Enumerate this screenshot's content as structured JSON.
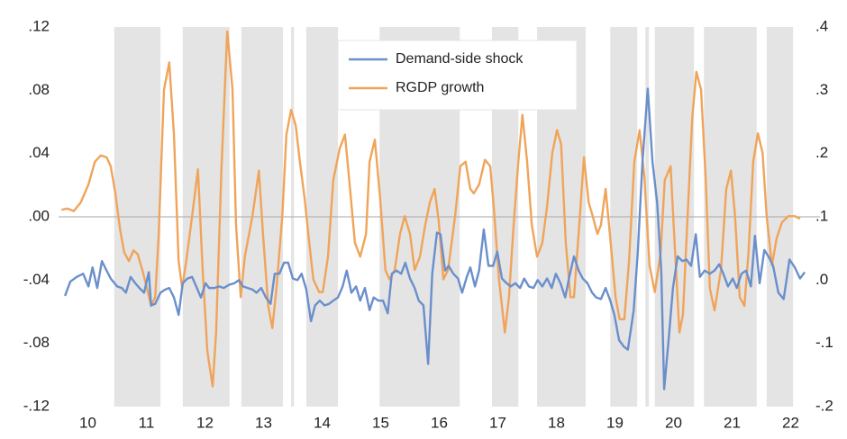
{
  "chart_data": {
    "type": "line",
    "xlim": [
      10,
      23
    ],
    "xticks": [
      {
        "value": 10.5,
        "label": "10"
      },
      {
        "value": 11.5,
        "label": "11"
      },
      {
        "value": 12.5,
        "label": "12"
      },
      {
        "value": 13.5,
        "label": "13"
      },
      {
        "value": 14.5,
        "label": "14"
      },
      {
        "value": 15.5,
        "label": "15"
      },
      {
        "value": 16.5,
        "label": "16"
      },
      {
        "value": 17.5,
        "label": "17"
      },
      {
        "value": 18.5,
        "label": "18"
      },
      {
        "value": 19.5,
        "label": "19"
      },
      {
        "value": 20.5,
        "label": "20"
      },
      {
        "value": 21.5,
        "label": "21"
      },
      {
        "value": 22.5,
        "label": "22"
      }
    ],
    "ylim": [
      -0.12,
      0.12
    ],
    "yticks": [
      {
        "value": -0.12,
        "label": "-.12"
      },
      {
        "value": -0.08,
        "label": "-.08"
      },
      {
        "value": -0.04,
        "label": "-.04"
      },
      {
        "value": 0,
        "label": ".00"
      },
      {
        "value": 0.04,
        "label": ".04"
      },
      {
        "value": 0.08,
        "label": ".08"
      },
      {
        "value": 0.12,
        "label": ".12"
      }
    ],
    "y2lim": [
      -0.2,
      0.4
    ],
    "y2ticks": [
      {
        "value": -0.2,
        "label": "-.2"
      },
      {
        "value": -0.1,
        "label": "-.1"
      },
      {
        "value": 0,
        "label": ".0"
      },
      {
        "value": 0.1,
        "label": ".1"
      },
      {
        "value": 0.2,
        "label": ".2"
      },
      {
        "value": 0.3,
        "label": ".3"
      },
      {
        "value": 0.4,
        "label": ".4"
      }
    ],
    "legend": "top-center",
    "shade_color": "#e4e4e4",
    "shaded_periods": [
      [
        10.95,
        11.74
      ],
      [
        12.12,
        12.92
      ],
      [
        13.12,
        13.83
      ],
      [
        13.97,
        14.02
      ],
      [
        14.23,
        14.77
      ],
      [
        15.48,
        16.85
      ],
      [
        17.4,
        17.85
      ],
      [
        18.17,
        19.0
      ],
      [
        19.42,
        19.88
      ],
      [
        20.02,
        20.08
      ],
      [
        20.18,
        20.85
      ],
      [
        21.02,
        21.92
      ],
      [
        22.09,
        22.54
      ]
    ],
    "series": [
      {
        "name": "Demand-side shock",
        "color": "#6a8fcb",
        "axis": "y",
        "x": [
          10.11,
          10.2,
          10.31,
          10.42,
          10.51,
          10.58,
          10.66,
          10.74,
          10.82,
          10.89,
          11,
          11.08,
          11.15,
          11.23,
          11.31,
          11.38,
          11.46,
          11.54,
          11.58,
          11.65,
          11.74,
          11.82,
          11.89,
          11.97,
          12.05,
          12.12,
          12.2,
          12.28,
          12.35,
          12.43,
          12.51,
          12.57,
          12.66,
          12.74,
          12.82,
          12.91,
          13,
          13.08,
          13.15,
          13.23,
          13.31,
          13.38,
          13.46,
          13.54,
          13.62,
          13.69,
          13.77,
          13.85,
          13.92,
          14,
          14.08,
          14.15,
          14.23,
          14.31,
          14.38,
          14.46,
          14.54,
          14.62,
          14.69,
          14.77,
          14.85,
          14.92,
          15,
          15.08,
          15.15,
          15.23,
          15.31,
          15.38,
          15.46,
          15.54,
          15.62,
          15.69,
          15.77,
          15.85,
          15.92,
          16,
          16.08,
          16.15,
          16.23,
          16.31,
          16.38,
          16.46,
          16.52,
          16.6,
          16.66,
          16.74,
          16.82,
          16.89,
          16.97,
          17.03,
          17.11,
          17.18,
          17.26,
          17.34,
          17.42,
          17.49,
          17.57,
          17.65,
          17.72,
          17.8,
          17.88,
          17.95,
          18.03,
          18.11,
          18.18,
          18.26,
          18.34,
          18.42,
          18.49,
          18.57,
          18.65,
          18.72,
          18.8,
          18.88,
          18.95,
          19.03,
          19.11,
          19.18,
          19.26,
          19.34,
          19.42,
          19.49,
          19.57,
          19.65,
          19.72,
          19.82,
          19.89,
          19.97,
          20.06,
          20.14,
          20.22,
          20.29,
          20.34,
          20.42,
          20.49,
          20.57,
          20.65,
          20.72,
          20.8,
          20.88,
          20.95,
          21.03,
          21.12,
          21.2,
          21.28,
          21.35,
          21.43,
          21.51,
          21.58,
          21.66,
          21.74,
          21.82,
          21.89,
          21.97,
          22.05,
          22.12,
          22.2,
          22.29,
          22.38,
          22.48,
          22.57,
          22.66,
          22.74
        ],
        "values": [
          -0.05,
          -0.041,
          -0.038,
          -0.036,
          -0.044,
          -0.032,
          -0.045,
          -0.028,
          -0.034,
          -0.039,
          -0.044,
          -0.045,
          -0.048,
          -0.038,
          -0.042,
          -0.045,
          -0.048,
          -0.035,
          -0.056,
          -0.055,
          -0.048,
          -0.046,
          -0.045,
          -0.051,
          -0.062,
          -0.042,
          -0.039,
          -0.038,
          -0.044,
          -0.051,
          -0.042,
          -0.045,
          -0.045,
          -0.044,
          -0.045,
          -0.043,
          -0.042,
          -0.04,
          -0.044,
          -0.045,
          -0.046,
          -0.048,
          -0.045,
          -0.051,
          -0.055,
          -0.036,
          -0.036,
          -0.029,
          -0.029,
          -0.039,
          -0.04,
          -0.036,
          -0.046,
          -0.066,
          -0.056,
          -0.053,
          -0.056,
          -0.055,
          -0.053,
          -0.051,
          -0.044,
          -0.034,
          -0.048,
          -0.044,
          -0.053,
          -0.045,
          -0.059,
          -0.051,
          -0.053,
          -0.053,
          -0.061,
          -0.036,
          -0.034,
          -0.036,
          -0.029,
          -0.039,
          -0.045,
          -0.053,
          -0.056,
          -0.093,
          -0.036,
          -0.01,
          -0.011,
          -0.034,
          -0.031,
          -0.036,
          -0.039,
          -0.048,
          -0.038,
          -0.032,
          -0.044,
          -0.034,
          -0.008,
          -0.031,
          -0.031,
          -0.022,
          -0.039,
          -0.042,
          -0.044,
          -0.042,
          -0.045,
          -0.039,
          -0.044,
          -0.045,
          -0.04,
          -0.044,
          -0.039,
          -0.045,
          -0.036,
          -0.042,
          -0.051,
          -0.038,
          -0.025,
          -0.034,
          -0.039,
          -0.042,
          -0.048,
          -0.051,
          -0.052,
          -0.045,
          -0.053,
          -0.062,
          -0.078,
          -0.082,
          -0.084,
          -0.059,
          -0.022,
          0.035,
          0.081,
          0.035,
          0.009,
          -0.034,
          -0.109,
          -0.076,
          -0.045,
          -0.025,
          -0.028,
          -0.027,
          -0.031,
          -0.011,
          -0.038,
          -0.034,
          -0.036,
          -0.034,
          -0.03,
          -0.036,
          -0.044,
          -0.039,
          -0.045,
          -0.036,
          -0.034,
          -0.044,
          -0.012,
          -0.042,
          -0.021,
          -0.025,
          -0.031,
          -0.048,
          -0.052,
          -0.027,
          -0.032,
          -0.039,
          -0.035
        ]
      },
      {
        "name": "RGDP growth",
        "color": "#f0a45a",
        "axis": "y2",
        "x": [
          10.05,
          10.15,
          10.26,
          10.38,
          10.51,
          10.62,
          10.72,
          10.82,
          10.89,
          10.97,
          11.05,
          11.12,
          11.2,
          11.28,
          11.35,
          11.43,
          11.51,
          11.58,
          11.65,
          11.71,
          11.8,
          11.89,
          11.97,
          12.05,
          12.11,
          12.18,
          12.28,
          12.38,
          12.46,
          12.54,
          12.63,
          12.69,
          12.78,
          12.88,
          12.97,
          13.03,
          13.11,
          13.18,
          13.31,
          13.42,
          13.49,
          13.58,
          13.65,
          13.72,
          13.82,
          13.89,
          13.97,
          14.05,
          14.12,
          14.2,
          14.28,
          14.35,
          14.45,
          14.51,
          14.6,
          14.69,
          14.8,
          14.89,
          14.97,
          15.06,
          15.15,
          15.25,
          15.31,
          15.4,
          15.49,
          15.58,
          15.65,
          15.74,
          15.83,
          15.91,
          16,
          16.08,
          16.17,
          16.26,
          16.34,
          16.42,
          16.49,
          16.57,
          16.65,
          16.77,
          16.86,
          16.95,
          17.03,
          17.09,
          17.18,
          17.28,
          17.37,
          17.43,
          17.52,
          17.62,
          17.69,
          17.77,
          17.85,
          17.92,
          18,
          18.08,
          18.17,
          18.26,
          18.34,
          18.43,
          18.51,
          18.58,
          18.66,
          18.74,
          18.8,
          18.89,
          18.97,
          19.05,
          19.12,
          19.2,
          19.26,
          19.34,
          19.42,
          19.51,
          19.58,
          19.66,
          19.74,
          19.83,
          19.92,
          20,
          20.09,
          20.18,
          20.28,
          20.35,
          20.45,
          20.51,
          20.6,
          20.66,
          20.74,
          20.82,
          20.89,
          20.97,
          21.05,
          21.12,
          21.2,
          21.31,
          21.4,
          21.48,
          21.55,
          21.63,
          21.71,
          21.78,
          21.86,
          21.94,
          22.02,
          22.09,
          22.18,
          22.26,
          22.35,
          22.46,
          22.57,
          22.66
        ],
        "values": [
          0.111,
          0.113,
          0.109,
          0.123,
          0.151,
          0.187,
          0.197,
          0.194,
          0.18,
          0.137,
          0.08,
          0.044,
          0.03,
          0.047,
          0.041,
          0.016,
          -0.013,
          -0.041,
          -0.027,
          0.073,
          0.301,
          0.344,
          0.23,
          0.03,
          -0.013,
          0.03,
          0.101,
          0.175,
          0.016,
          -0.112,
          -0.168,
          -0.083,
          0.173,
          0.393,
          0.301,
          0.087,
          -0.027,
          0.037,
          0.101,
          0.173,
          0.073,
          -0.041,
          -0.076,
          -0.013,
          0.101,
          0.23,
          0.269,
          0.244,
          0.187,
          0.13,
          0.059,
          0.001,
          -0.019,
          -0.019,
          0.037,
          0.158,
          0.208,
          0.23,
          0.151,
          0.059,
          0.037,
          0.073,
          0.187,
          0.222,
          0.13,
          0.016,
          0.001,
          0.016,
          0.073,
          0.101,
          0.073,
          0.016,
          0.037,
          0.087,
          0.123,
          0.144,
          0.094,
          0.001,
          0.016,
          0.101,
          0.18,
          0.187,
          0.144,
          0.137,
          0.151,
          0.19,
          0.18,
          0.116,
          0.001,
          -0.083,
          -0.027,
          0.087,
          0.187,
          0.261,
          0.187,
          0.087,
          0.037,
          0.059,
          0.116,
          0.201,
          0.237,
          0.215,
          0.059,
          -0.027,
          -0.027,
          0.087,
          0.194,
          0.123,
          0.101,
          0.073,
          0.087,
          0.144,
          0.066,
          -0.027,
          -0.062,
          -0.062,
          0.03,
          0.187,
          0.237,
          0.165,
          0.023,
          -0.019,
          0.044,
          0.158,
          0.18,
          0.073,
          -0.083,
          -0.055,
          0.101,
          0.258,
          0.329,
          0.301,
          0.158,
          -0.013,
          -0.048,
          0.016,
          0.144,
          0.173,
          0.101,
          -0.027,
          -0.041,
          0.044,
          0.187,
          0.232,
          0.201,
          0.101,
          0.023,
          0.066,
          0.091,
          0.101,
          0.101,
          0.097
        ]
      }
    ]
  }
}
